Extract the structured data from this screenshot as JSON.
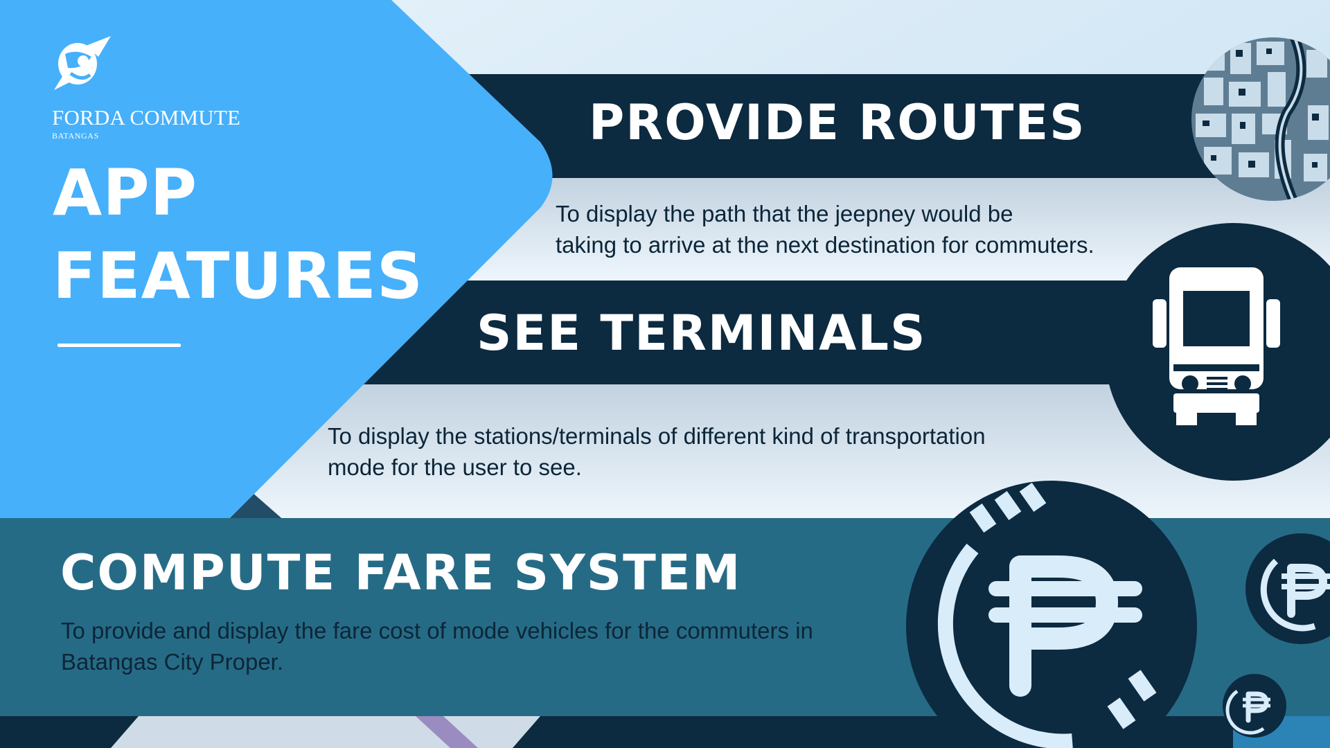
{
  "brand": {
    "name": "FORDA COMMUTE",
    "subtitle": "BATANGAS",
    "logo_icon": "orbit-logo-icon"
  },
  "hero": {
    "line1": "APP",
    "line2": "FEATURES"
  },
  "features": [
    {
      "title": "PROVIDE ROUTES",
      "description_line1": "To display the path that the jeepney would be",
      "description_line2": "taking to arrive at the next destination for commuters.",
      "icon": "city-map-icon"
    },
    {
      "title": "SEE TERMINALS",
      "description_line1": "To display the stations/terminals of different kind of transportation",
      "description_line2": "mode for the user to see.",
      "icon": "bus-icon"
    },
    {
      "title": "COMPUTE FARE SYSTEM",
      "description_line1": "To provide and display the fare cost of mode vehicles for the commuters in",
      "description_line2": "Batangas City Proper.",
      "icon": "peso-coin-icon"
    }
  ],
  "colors": {
    "navy": "#0c2a40",
    "sky_blue": "#46b0fb",
    "teal": "#266b86",
    "light": "#dbeaf5"
  }
}
